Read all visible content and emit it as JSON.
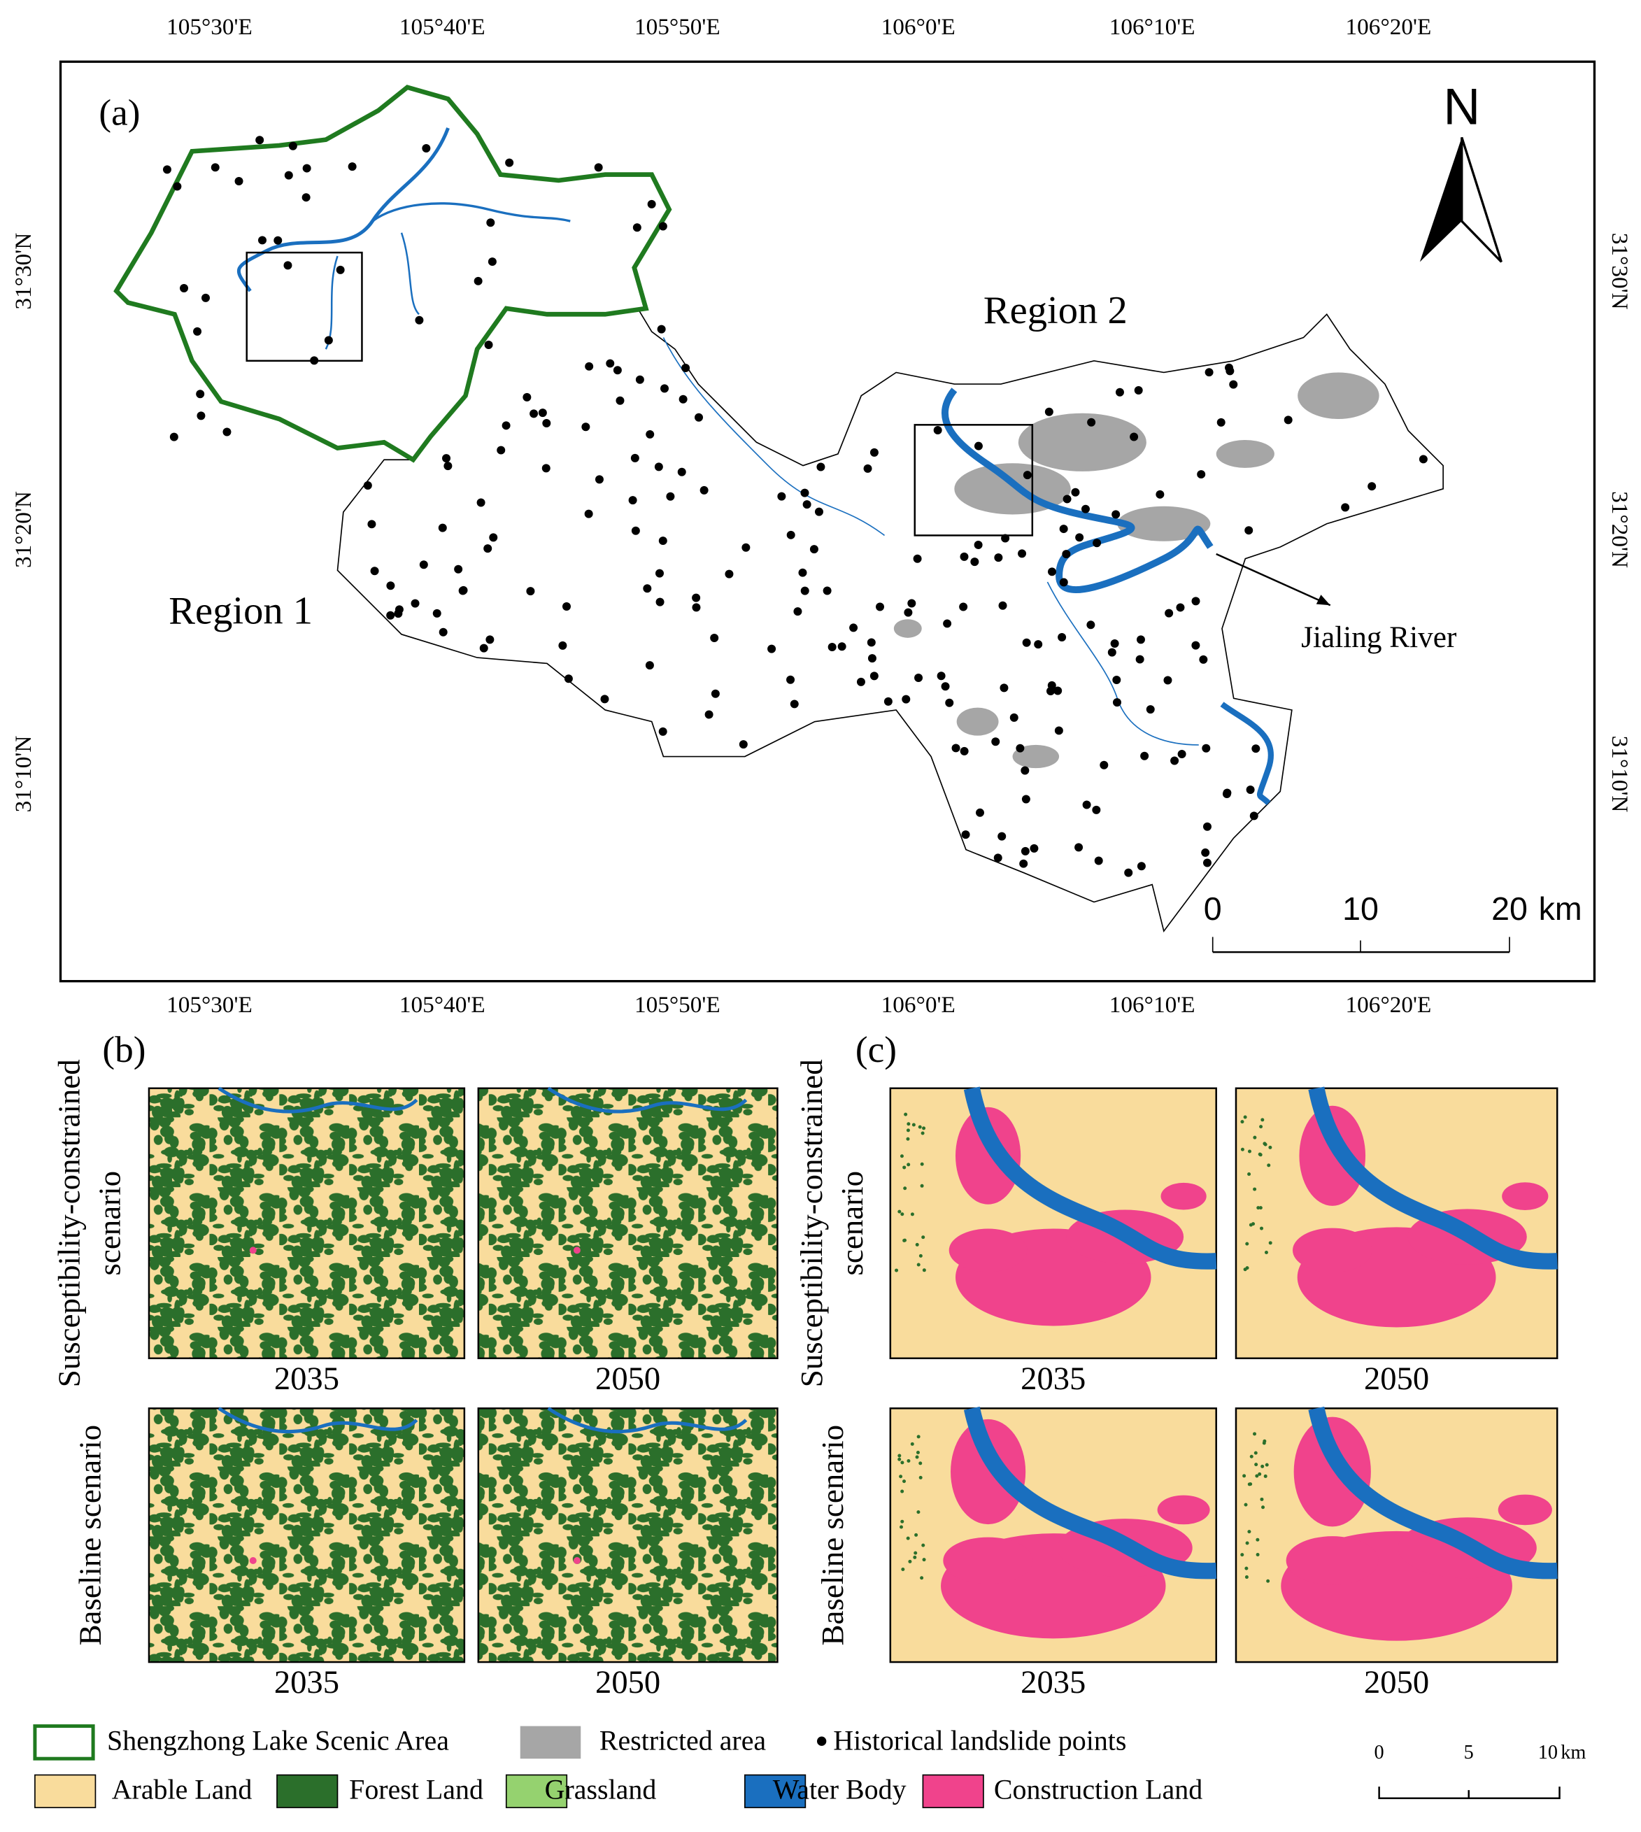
{
  "panel_a": {
    "label": "(a)",
    "north": "N",
    "longitude_labels": [
      "105°30'E",
      "105°40'E",
      "105°50'E",
      "106°0'E",
      "106°10'E",
      "106°20'E"
    ],
    "latitude_labels": [
      "31°30'N",
      "31°20'N",
      "31°10'N"
    ],
    "region_1": "Region 1",
    "region_2": "Region 2",
    "river_label": "Jialing River",
    "scale_bar": [
      "0",
      "10",
      "20"
    ],
    "scale_unit": "km"
  },
  "panel_b": {
    "label": "(b)",
    "rows": [
      {
        "scenario": [
          "Susceptibility-constrained",
          "scenario"
        ],
        "years": [
          "2035",
          "2050"
        ]
      },
      {
        "scenario": [
          "Baseline scenario"
        ],
        "years": [
          "2035",
          "2050"
        ]
      }
    ]
  },
  "panel_c": {
    "label": "(c)",
    "rows": [
      {
        "scenario": [
          "Susceptibility-constrained",
          "scenario"
        ],
        "years": [
          "2035",
          "2050"
        ]
      },
      {
        "scenario": [
          "Baseline scenario"
        ],
        "years": [
          "2035",
          "2050"
        ]
      }
    ]
  },
  "legend": {
    "row1": [
      "Shengzhong Lake Scenic Area",
      "Restricted area",
      "Historical landslide points"
    ],
    "row2": [
      {
        "label": "Arable Land",
        "color": "#f9dc9c"
      },
      {
        "label": "Forest Land",
        "color": "#2b6f2b"
      },
      {
        "label": "Grassland",
        "color": "#95d26f"
      },
      {
        "label": "Water Body",
        "color": "#1a6fbf"
      },
      {
        "label": "Construction Land",
        "color": "#f0438c"
      }
    ]
  },
  "inset_scale_bar": {
    "ticks": [
      "0",
      "5",
      "10"
    ],
    "unit": "km"
  }
}
